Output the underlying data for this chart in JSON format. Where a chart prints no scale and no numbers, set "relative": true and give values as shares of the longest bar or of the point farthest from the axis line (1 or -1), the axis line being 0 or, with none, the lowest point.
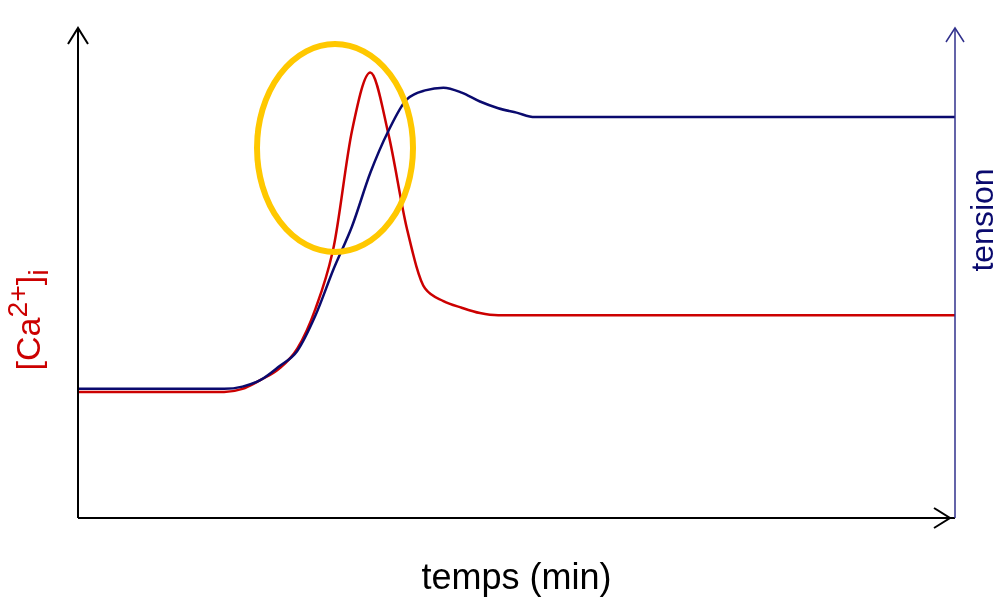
{
  "chart_data": {
    "type": "line",
    "relative": true,
    "xlabel": "temps (min)",
    "ylabel": "[Ca$^{2+}$]$_{i}$",
    "y2label": "tension",
    "categories": [
      null,
      null,
      null,
      null,
      null,
      null,
      null,
      null,
      null,
      null,
      null,
      null,
      null,
      null,
      null,
      null,
      null,
      null,
      null,
      null,
      null,
      null,
      null,
      null,
      null,
      null,
      null,
      null,
      null,
      null,
      null,
      null,
      null,
      null,
      null,
      null,
      null,
      null,
      null,
      null,
      null,
      null,
      null,
      null,
      null,
      null,
      null,
      null,
      null
    ],
    "series": [
      {
        "color": "#cc0000",
        "values": [
          0.283,
          0.283,
          0.283,
          0.283,
          0.283,
          0.283,
          0.283,
          0.283,
          0.283,
          0.29,
          0.31,
          0.335,
          0.38,
          0.47,
          0.61,
          0.87,
          1.0,
          0.86,
          0.65,
          0.515,
          0.487,
          0.472,
          0.46,
          0.455,
          0.455,
          0.455,
          0.455,
          0.455,
          0.455,
          0.455,
          0.455,
          0.455,
          0.455,
          0.455,
          0.455,
          0.455,
          0.455,
          0.455,
          0.455,
          0.455,
          0.455,
          0.455,
          0.455,
          0.455,
          0.455,
          0.455,
          0.455,
          0.455,
          0.455
        ]
      },
      {
        "color": "#0a0a6e",
        "values": [
          0.29,
          0.29,
          0.29,
          0.29,
          0.29,
          0.29,
          0.29,
          0.29,
          0.29,
          0.295,
          0.31,
          0.34,
          0.375,
          0.455,
          0.56,
          0.655,
          0.775,
          0.87,
          0.94,
          0.96,
          0.966,
          0.955,
          0.935,
          0.92,
          0.91,
          0.9,
          0.9,
          0.9,
          0.9,
          0.9,
          0.9,
          0.9,
          0.9,
          0.9,
          0.9,
          0.9,
          0.9,
          0.9,
          0.9,
          0.9,
          0.9,
          0.9,
          0.9,
          0.9,
          0.9,
          0.9,
          0.9,
          0.9,
          0.9
        ]
      }
    ],
    "marker": "none",
    "line_style": "solid",
    "legend": false,
    "grid": false
  }
}
